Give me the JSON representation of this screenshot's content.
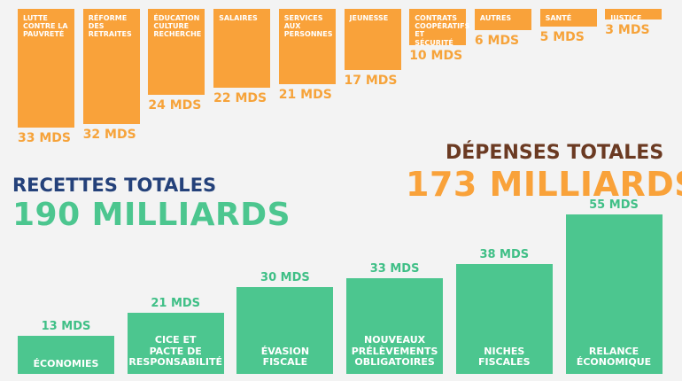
{
  "colors": {
    "spending": "#f9a23a",
    "revenue": "#4cc68f",
    "revenue_title": "#24417a",
    "spending_title": "#6b3a22",
    "background": "#f3f3f3"
  },
  "revenue_header": {
    "title": "RECETTES TOTALES",
    "total": "190 MILLIARDS"
  },
  "spending_header": {
    "title": "DÉPENSES TOTALES",
    "total": "173 MILLIARDS"
  },
  "chart_data": [
    {
      "type": "bar",
      "orientation": "downward",
      "categories": [
        "LUTTE\nCONTRE LA\nPAUVRETÉ",
        "RÉFORME\nDES\nRETRAITES",
        "ÉDUCATION\nCULTURE\nRECHERCHE",
        "SALAIRES",
        "SERVICES\nAUX\nPERSONNES",
        "JEUNESSE",
        "CONTRATS\nCOOPÉRATIFS\nET SÉCURITÉ",
        "AUTRES",
        "SANTÉ",
        "JUSTICE"
      ],
      "values": [
        33,
        32,
        24,
        22,
        21,
        17,
        10,
        6,
        5,
        3
      ],
      "value_labels": [
        "33 MDS",
        "32 MDS",
        "24 MDS",
        "22 MDS",
        "21 MDS",
        "17 MDS",
        "10 MDS",
        "6 MDS",
        "5 MDS",
        "3 MDS"
      ],
      "title": "DÉPENSES TOTALES",
      "xlabel": "",
      "ylabel": "",
      "ylim": [
        0,
        33
      ],
      "grid": false
    },
    {
      "type": "bar",
      "orientation": "upward",
      "categories": [
        "ÉCONOMIES",
        "CICE ET\nPACTE DE\nRESPONSABILITÉ",
        "ÉVASION\nFISCALE",
        "NOUVEAUX\nPRÉLÈVEMENTS\nOBLIGATOIRES",
        "NICHES\nFISCALES",
        "RELANCE\nÉCONOMIQUE"
      ],
      "values": [
        13,
        21,
        30,
        33,
        38,
        55
      ],
      "value_labels": [
        "13 MDS",
        "21 MDS",
        "30 MDS",
        "33 MDS",
        "38 MDS",
        "55 MDS"
      ],
      "title": "RECETTES TOTALES",
      "xlabel": "",
      "ylabel": "",
      "ylim": [
        0,
        55
      ],
      "grid": false
    }
  ]
}
